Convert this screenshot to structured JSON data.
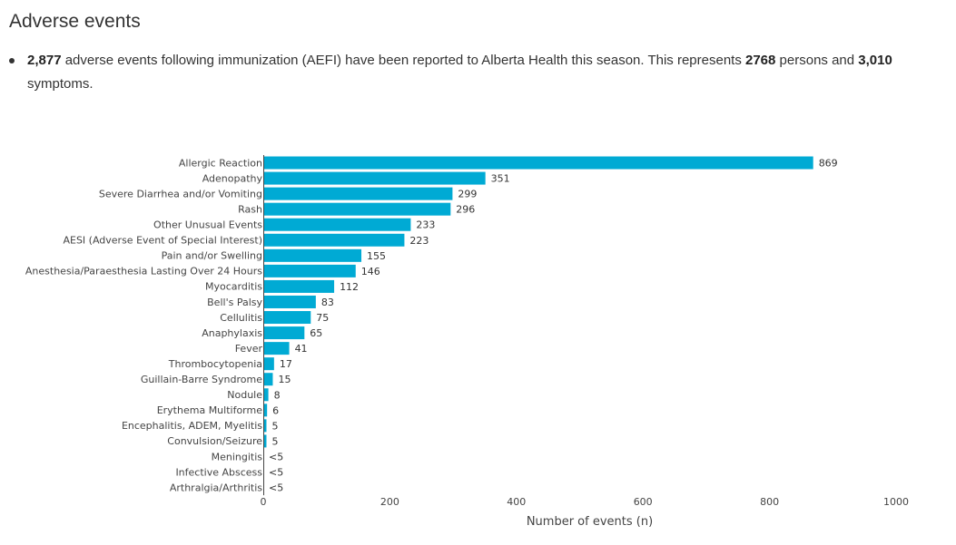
{
  "page": {
    "title": "Adverse events",
    "summary": {
      "aefi_count": "2,877",
      "text_1": " adverse events following immunization (AEFI) have been reported to Alberta Health this season. This represents ",
      "persons_count": "2768",
      "text_2": " persons and ",
      "symptoms_count": "3,010",
      "text_3": " symptoms."
    }
  },
  "chart_data": {
    "type": "bar",
    "orientation": "horizontal",
    "categories": [
      "Allergic Reaction",
      "Adenopathy",
      "Severe Diarrhea and/or Vomiting",
      "Rash",
      "Other Unusual Events",
      "AESI (Adverse Event of Special Interest)",
      "Pain and/or Swelling",
      "Anesthesia/Paraesthesia Lasting Over 24 Hours",
      "Myocarditis",
      "Bell's Palsy",
      "Cellulitis",
      "Anaphylaxis",
      "Fever",
      "Thrombocytopenia",
      "Guillain-Barre Syndrome",
      "Nodule",
      "Erythema Multiforme",
      "Encephalitis, ADEM, Myelitis",
      "Convulsion/Seizure",
      "Meningitis",
      "Infective Abscess",
      "Arthralgia/Arthritis"
    ],
    "values": [
      869,
      351,
      299,
      296,
      233,
      223,
      155,
      146,
      112,
      83,
      75,
      65,
      41,
      17,
      15,
      8,
      6,
      5,
      5,
      null,
      null,
      null
    ],
    "value_labels": [
      "869",
      "351",
      "299",
      "296",
      "233",
      "223",
      "155",
      "146",
      "112",
      "83",
      "75",
      "65",
      "41",
      "17",
      "15",
      "8",
      "6",
      "5",
      "5",
      "<5",
      "<5",
      "<5"
    ],
    "xlabel": "Number of events (n)",
    "ylabel": "",
    "xlim": [
      0,
      1000
    ],
    "xticks": [
      0,
      200,
      400,
      600,
      800,
      1000
    ],
    "grid": false,
    "legend": "none",
    "bar_color": "#00aad4",
    "axis_color": "#444444",
    "text_color": "#444444"
  }
}
